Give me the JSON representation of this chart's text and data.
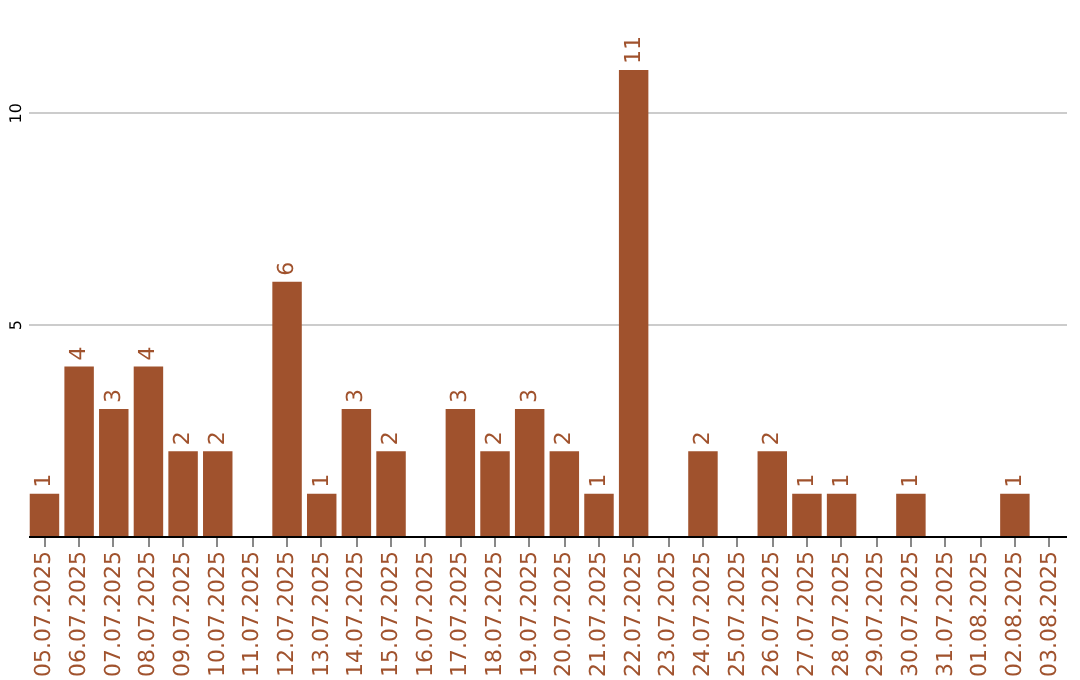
{
  "chart_data": {
    "type": "bar",
    "categories": [
      "05.07.2025",
      "06.07.2025",
      "07.07.2025",
      "08.07.2025",
      "09.07.2025",
      "10.07.2025",
      "11.07.2025",
      "12.07.2025",
      "13.07.2025",
      "14.07.2025",
      "15.07.2025",
      "16.07.2025",
      "17.07.2025",
      "18.07.2025",
      "19.07.2025",
      "20.07.2025",
      "21.07.2025",
      "22.07.2025",
      "23.07.2025",
      "24.07.2025",
      "25.07.2025",
      "26.07.2025",
      "27.07.2025",
      "28.07.2025",
      "29.07.2025",
      "30.07.2025",
      "31.07.2025",
      "01.08.2025",
      "02.08.2025",
      "03.08.2025"
    ],
    "values": [
      1,
      4,
      3,
      4,
      2,
      2,
      0,
      6,
      1,
      3,
      2,
      0,
      3,
      2,
      3,
      2,
      1,
      11,
      0,
      2,
      0,
      2,
      1,
      1,
      0,
      1,
      0,
      0,
      1,
      0
    ],
    "value_labels": [
      "1",
      "4",
      "3",
      "4",
      "2",
      "2",
      null,
      "6",
      "1",
      "3",
      "2",
      null,
      "3",
      "2",
      "3",
      "2",
      "1",
      "11",
      null,
      "2",
      null,
      "2",
      "1",
      "1",
      null,
      "1",
      null,
      null,
      "1",
      null
    ],
    "color": "#a0522d",
    "ylim": [
      0,
      11
    ],
    "yticks": [
      5,
      10
    ],
    "grid": "y"
  }
}
